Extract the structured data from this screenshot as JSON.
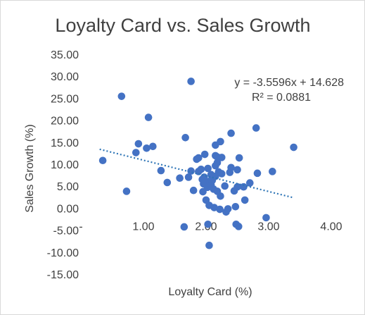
{
  "chart_data": {
    "type": "scatter",
    "title": "Loyalty Card vs. Sales Growth",
    "xlabel": "Loyalty Card (%)",
    "ylabel": "Sales Growth (%)",
    "xlim": [
      0,
      4
    ],
    "ylim": [
      -15,
      35
    ],
    "x_ticks": [
      {
        "v": 0,
        "label": "-"
      },
      {
        "v": 1,
        "label": "1.00"
      },
      {
        "v": 2,
        "label": "2.00"
      },
      {
        "v": 3,
        "label": "3.00"
      },
      {
        "v": 4,
        "label": "4.00"
      }
    ],
    "y_ticks": [
      {
        "v": 35,
        "label": "35.00"
      },
      {
        "v": 30,
        "label": "30.00"
      },
      {
        "v": 25,
        "label": "25.00"
      },
      {
        "v": 20,
        "label": "20.00"
      },
      {
        "v": 15,
        "label": "15.00"
      },
      {
        "v": 10,
        "label": "10.00"
      },
      {
        "v": 5,
        "label": "5.00"
      },
      {
        "v": 0,
        "label": "0.00"
      },
      {
        "v": -5,
        "label": "-5.00"
      },
      {
        "v": -10,
        "label": "-10.00"
      },
      {
        "v": -15,
        "label": "-15.00"
      }
    ],
    "grid": false,
    "marker_color": "#4472c4",
    "trendline": {
      "type": "linear",
      "slope": -3.5596,
      "intercept": 14.628,
      "x_range": [
        0.3,
        3.4
      ],
      "color": "#2e75b6",
      "equation_label": "y = -3.5596x + 14.628",
      "r2_label": "R² = 0.0881"
    },
    "points": [
      [
        0.35,
        11.0
      ],
      [
        0.65,
        25.6
      ],
      [
        0.73,
        4.0
      ],
      [
        0.88,
        12.8
      ],
      [
        0.92,
        14.8
      ],
      [
        1.05,
        13.8
      ],
      [
        1.08,
        20.8
      ],
      [
        1.15,
        14.2
      ],
      [
        1.28,
        8.7
      ],
      [
        1.38,
        6.0
      ],
      [
        1.58,
        7.0
      ],
      [
        1.65,
        -4.1
      ],
      [
        1.67,
        16.2
      ],
      [
        1.72,
        7.2
      ],
      [
        1.76,
        29.0
      ],
      [
        1.76,
        8.6
      ],
      [
        1.8,
        4.2
      ],
      [
        1.85,
        11.3
      ],
      [
        1.88,
        11.6
      ],
      [
        1.88,
        8.5
      ],
      [
        1.92,
        9.0
      ],
      [
        1.94,
        6.7
      ],
      [
        1.95,
        3.9
      ],
      [
        1.96,
        5.7
      ],
      [
        1.97,
        7.2
      ],
      [
        1.98,
        12.4
      ],
      [
        2.0,
        6.0
      ],
      [
        2.0,
        2.0
      ],
      [
        2.02,
        4.9
      ],
      [
        2.03,
        9.2
      ],
      [
        2.03,
        -3.5
      ],
      [
        2.05,
        0.8
      ],
      [
        2.05,
        -8.3
      ],
      [
        2.06,
        6.3
      ],
      [
        2.08,
        7.8
      ],
      [
        2.08,
        5.5
      ],
      [
        2.1,
        6.5
      ],
      [
        2.12,
        4.5
      ],
      [
        2.13,
        0.3
      ],
      [
        2.15,
        12.1
      ],
      [
        2.15,
        9.8
      ],
      [
        2.15,
        7.4
      ],
      [
        2.15,
        14.5
      ],
      [
        2.18,
        11.8
      ],
      [
        2.18,
        10.5
      ],
      [
        2.18,
        4.0
      ],
      [
        2.2,
        8.4
      ],
      [
        2.22,
        -0.1
      ],
      [
        2.23,
        2.9
      ],
      [
        2.23,
        15.3
      ],
      [
        2.25,
        8.0
      ],
      [
        2.25,
        11.7
      ],
      [
        2.3,
        5.2
      ],
      [
        2.32,
        -0.7
      ],
      [
        2.35,
        0.0
      ],
      [
        2.38,
        8.3
      ],
      [
        2.4,
        17.2
      ],
      [
        2.4,
        9.4
      ],
      [
        2.45,
        4.1
      ],
      [
        2.47,
        0.5
      ],
      [
        2.48,
        -3.5
      ],
      [
        2.5,
        5.0
      ],
      [
        2.5,
        8.9
      ],
      [
        2.52,
        -4.0
      ],
      [
        2.53,
        11.6
      ],
      [
        2.6,
        5.0
      ],
      [
        2.62,
        2.0
      ],
      [
        2.7,
        5.9
      ],
      [
        2.8,
        18.4
      ],
      [
        2.82,
        8.1
      ],
      [
        2.96,
        -2.0
      ],
      [
        3.06,
        8.5
      ],
      [
        3.4,
        14.0
      ]
    ]
  }
}
